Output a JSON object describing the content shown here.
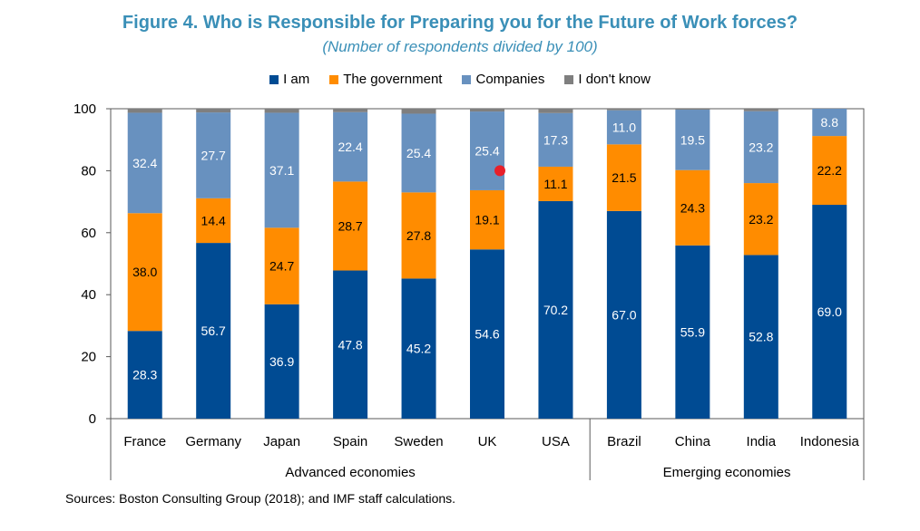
{
  "chart_data": {
    "type": "stacked_bar",
    "title": "Figure 4. Who is Responsible for Preparing you for the Future of Work forces?",
    "subtitle": "(Number of respondents divided by 100)",
    "categories": [
      "France",
      "Germany",
      "Japan",
      "Spain",
      "Sweden",
      "UK",
      "USA",
      "Brazil",
      "China",
      "India",
      "Indonesia"
    ],
    "groups": [
      {
        "label": "Advanced economies",
        "members": [
          "France",
          "Germany",
          "Japan",
          "Spain",
          "Sweden",
          "UK",
          "USA"
        ]
      },
      {
        "label": "Emerging economies",
        "members": [
          "Brazil",
          "China",
          "India",
          "Indonesia"
        ]
      }
    ],
    "series": [
      {
        "name": "I am",
        "color": "#004b93",
        "values": [
          28.3,
          56.7,
          36.9,
          47.8,
          45.2,
          54.6,
          70.2,
          67.0,
          55.9,
          52.8,
          69.0
        ]
      },
      {
        "name": "The government",
        "color": "#ff8c00",
        "values": [
          38.0,
          14.4,
          24.7,
          28.7,
          27.8,
          19.1,
          11.1,
          21.5,
          24.3,
          23.2,
          22.2
        ]
      },
      {
        "name": "Companies",
        "color": "#6891bf",
        "values": [
          32.4,
          27.7,
          37.1,
          22.4,
          25.4,
          25.4,
          17.3,
          11.0,
          19.5,
          23.2,
          8.8
        ]
      },
      {
        "name": "I don't know",
        "color": "#7f7f7f",
        "values": [
          1.3,
          1.2,
          1.3,
          1.1,
          1.6,
          0.9,
          1.4,
          0.5,
          0.3,
          0.8,
          0.0
        ]
      }
    ],
    "value_labels": [
      [
        "28.3",
        "56.7",
        "36.9",
        "47.8",
        "45.2",
        "54.6",
        "70.2",
        "67.0",
        "55.9",
        "52.8",
        "69.0"
      ],
      [
        "38.0",
        "14.4",
        "24.7",
        "28.7",
        "27.8",
        "19.1",
        "11.1",
        "21.5",
        "24.3",
        "23.2",
        "22.2"
      ],
      [
        "32.4",
        "27.7",
        "37.1",
        "22.4",
        "25.4",
        "25.4",
        "17.3",
        "11.0",
        "19.5",
        "23.2",
        "8.8"
      ]
    ],
    "yticks": [
      "0",
      "20",
      "40",
      "60",
      "80",
      "100"
    ],
    "ylim": [
      0,
      100
    ],
    "legend_position": "top",
    "marker": {
      "category": "UK",
      "y": 80,
      "color": "#e8202a"
    }
  },
  "source": "Sources: Boston Consulting Group (2018); and IMF staff calculations."
}
